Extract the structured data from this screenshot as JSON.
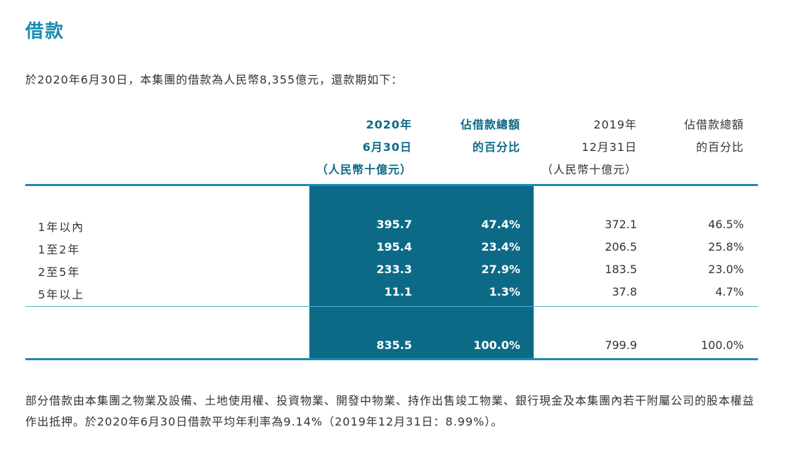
{
  "title": "借款",
  "intro": "於2020年6月30日，本集團的借款為人民幣8,355億元，還款期如下：",
  "headers": {
    "cur_amount": [
      "2020年",
      "6月30日",
      "（人民幣十億元）"
    ],
    "cur_pct": [
      "佔借款總額",
      "的百分比"
    ],
    "prev_amount": [
      "2019年",
      "12月31日",
      "（人民幣十億元）"
    ],
    "prev_pct": [
      "佔借款總額",
      "的百分比"
    ]
  },
  "rows": [
    {
      "label": "1年以內",
      "cur_amount": "395.7",
      "cur_pct": "47.4%",
      "prev_amount": "372.1",
      "prev_pct": "46.5%"
    },
    {
      "label": "1至2年",
      "cur_amount": "195.4",
      "cur_pct": "23.4%",
      "prev_amount": "206.5",
      "prev_pct": "25.8%"
    },
    {
      "label": "2至5年",
      "cur_amount": "233.3",
      "cur_pct": "27.9%",
      "prev_amount": "183.5",
      "prev_pct": "23.0%"
    },
    {
      "label": "5年以上",
      "cur_amount": "11.1",
      "cur_pct": "1.3%",
      "prev_amount": "37.8",
      "prev_pct": "4.7%"
    }
  ],
  "total": {
    "cur_amount": "835.5",
    "cur_pct": "100.0%",
    "prev_amount": "799.9",
    "prev_pct": "100.0%"
  },
  "footnote": "部分借款由本集團之物業及設備、土地使用權、投資物業、開發中物業、持作出售竣工物業、銀行現金及本集團內若干附屬公司的股本權益作出抵押。於2020年6月30日借款平均年利率為9.14%（2019年12月31日：8.99%）。",
  "colors": {
    "accent": "#1a8cb3",
    "highlight": "#0d6a87"
  }
}
